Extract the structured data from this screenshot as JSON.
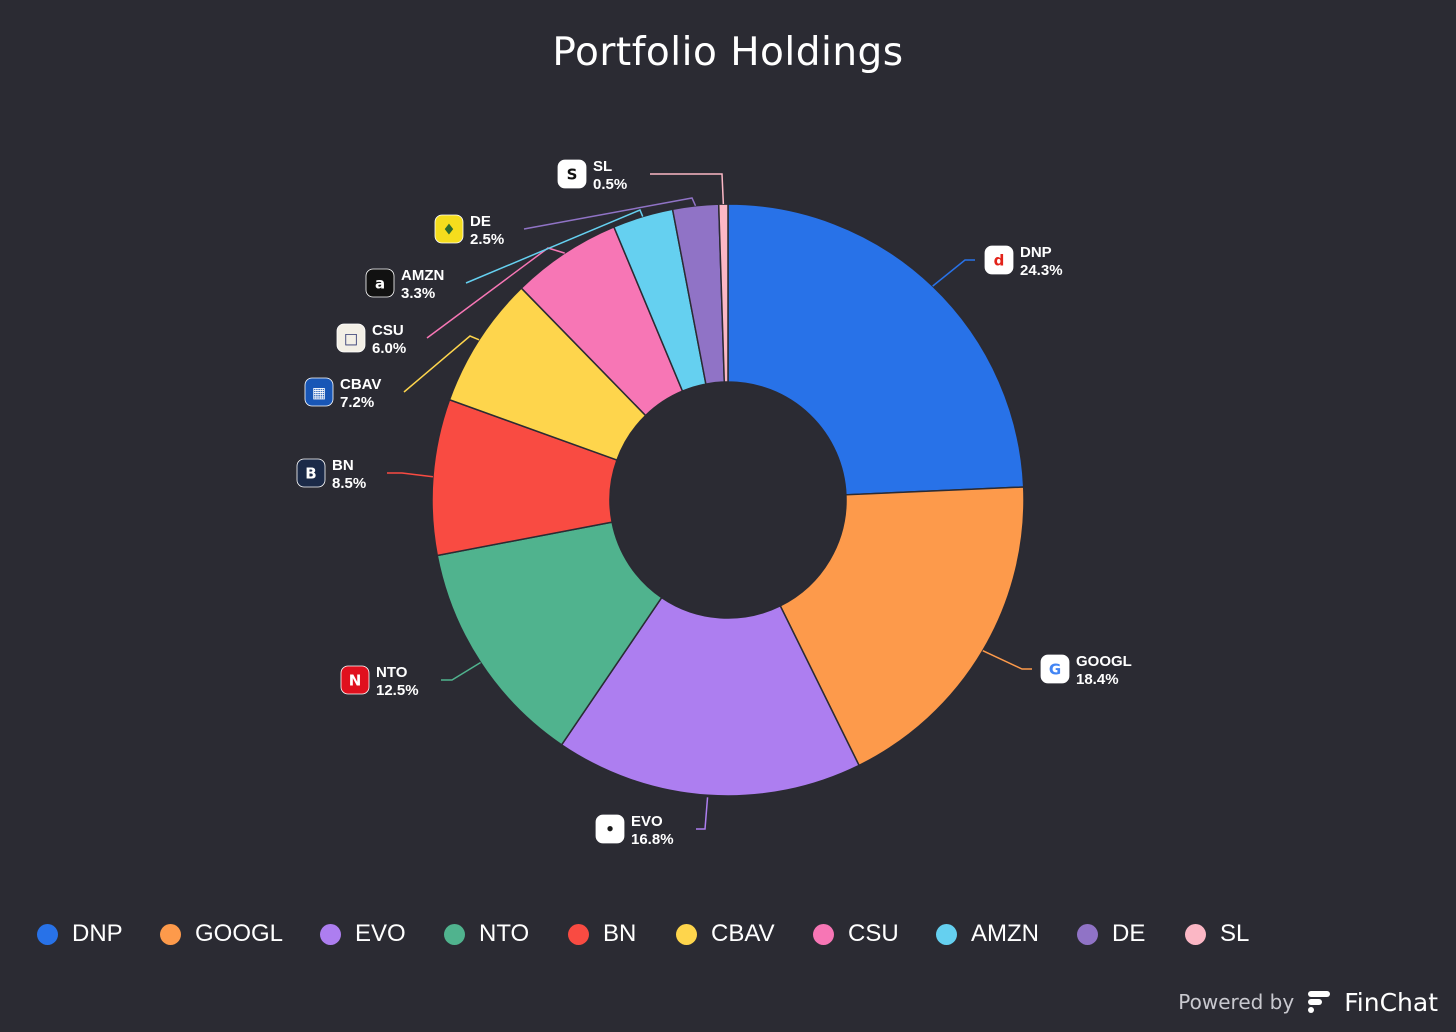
{
  "chart_data": {
    "type": "pie",
    "title": "Portfolio Holdings",
    "donut": true,
    "legend_position": "bottom",
    "slices": [
      {
        "ticker": "DNP",
        "value": 24.3,
        "label": "24.3%",
        "color": "#2872e8",
        "icon": "dnp-logo-icon"
      },
      {
        "ticker": "GOOGL",
        "value": 18.4,
        "label": "18.4%",
        "color": "#fd9a4b",
        "icon": "google-logo-icon"
      },
      {
        "ticker": "EVO",
        "value": 16.8,
        "label": "16.8%",
        "color": "#ad7ef0",
        "icon": "evo-logo-icon"
      },
      {
        "ticker": "NTO",
        "value": 12.5,
        "label": "12.5%",
        "color": "#50b38e",
        "icon": "nto-logo-icon"
      },
      {
        "ticker": "BN",
        "value": 8.5,
        "label": "8.5%",
        "color": "#f94b42",
        "icon": "bn-logo-icon"
      },
      {
        "ticker": "CBAV",
        "value": 7.2,
        "label": "7.2%",
        "color": "#fed54c",
        "icon": "cbav-logo-icon"
      },
      {
        "ticker": "CSU",
        "value": 6.0,
        "label": "6.0%",
        "color": "#f776b5",
        "icon": "csu-logo-icon"
      },
      {
        "ticker": "AMZN",
        "value": 3.3,
        "label": "3.3%",
        "color": "#65d0f0",
        "icon": "amazon-logo-icon"
      },
      {
        "ticker": "DE",
        "value": 2.5,
        "label": "2.5%",
        "color": "#9073c6",
        "icon": "deere-logo-icon"
      },
      {
        "ticker": "SL",
        "value": 0.5,
        "label": "0.5%",
        "color": "#fbb7c5",
        "icon": "sl-logo-icon"
      }
    ]
  },
  "legend": [
    {
      "label": "DNP",
      "color": "#2872e8"
    },
    {
      "label": "GOOGL",
      "color": "#fd9a4b"
    },
    {
      "label": "EVO",
      "color": "#ad7ef0"
    },
    {
      "label": "NTO",
      "color": "#50b38e"
    },
    {
      "label": "BN",
      "color": "#f94b42"
    },
    {
      "label": "CBAV",
      "color": "#fed54c"
    },
    {
      "label": "CSU",
      "color": "#f776b5"
    },
    {
      "label": "AMZN",
      "color": "#65d0f0"
    },
    {
      "label": "DE",
      "color": "#9073c6"
    },
    {
      "label": "SL",
      "color": "#fbb7c5"
    }
  ],
  "branding": {
    "powered_by": "Powered by",
    "name": "FinChat",
    "icon": "finchat-logo-icon"
  }
}
